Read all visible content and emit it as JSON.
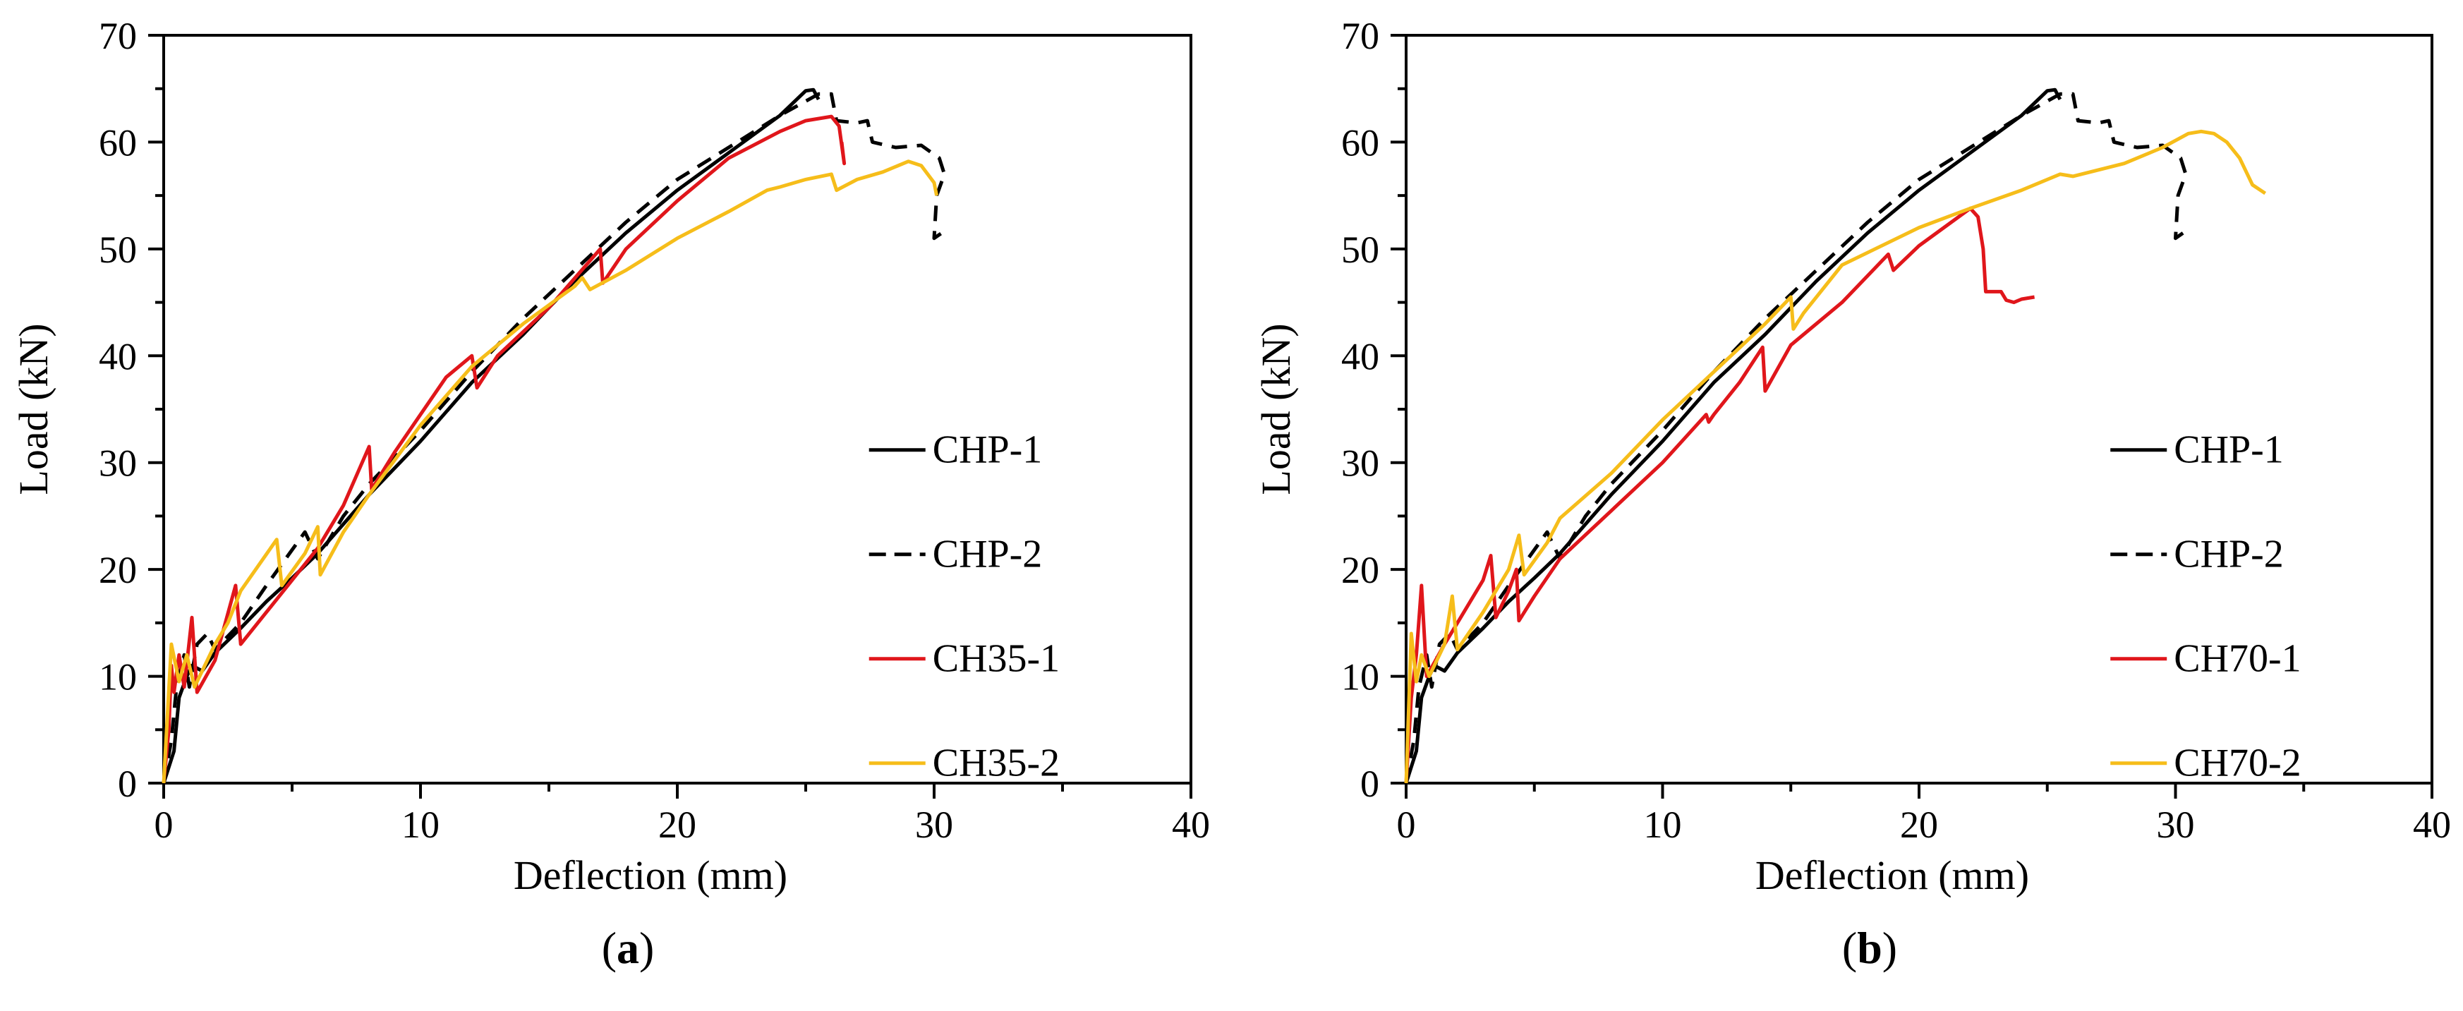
{
  "colors": {
    "axis": "#000000",
    "black": "#000000",
    "red": "#e0161b",
    "yellow": "#f6bd1a"
  },
  "chart_data": [
    {
      "panel_label": "(a)",
      "panel_letter": "a",
      "type": "line",
      "xlabel": "Deflection (mm)",
      "ylabel": "Load (kN)",
      "xlim": [
        0,
        40
      ],
      "ylim": [
        0,
        70
      ],
      "xticks": [
        0,
        10,
        20,
        30,
        40
      ],
      "yticks": [
        0,
        10,
        20,
        30,
        40,
        50,
        60,
        70
      ],
      "legend_position": "lower-right",
      "series": [
        {
          "name": "CHP-1",
          "color": "black",
          "dash": "solid",
          "points": [
            [
              0,
              0
            ],
            [
              0.4,
              3
            ],
            [
              0.6,
              8
            ],
            [
              0.9,
              10
            ],
            [
              1.1,
              11
            ],
            [
              1.5,
              10.5
            ],
            [
              2,
              12.2
            ],
            [
              3,
              14.5
            ],
            [
              4,
              17
            ],
            [
              5,
              19.2
            ],
            [
              6,
              21.5
            ],
            [
              8,
              27
            ],
            [
              10,
              32
            ],
            [
              12,
              37.5
            ],
            [
              14,
              42
            ],
            [
              16,
              47
            ],
            [
              18,
              51.5
            ],
            [
              20,
              55.5
            ],
            [
              22,
              59
            ],
            [
              24,
              62.5
            ],
            [
              25,
              64.8
            ],
            [
              25.3,
              64.9
            ],
            [
              25.5,
              64
            ]
          ]
        },
        {
          "name": "CHP-2",
          "color": "black",
          "dash": "dashed",
          "points": [
            [
              0,
              0
            ],
            [
              0.3,
              4
            ],
            [
              0.5,
              9
            ],
            [
              0.8,
              12
            ],
            [
              1,
              9
            ],
            [
              1.3,
              13
            ],
            [
              1.7,
              14
            ],
            [
              2,
              12.5
            ],
            [
              3,
              15
            ],
            [
              4,
              18.5
            ],
            [
              5.5,
              23.5
            ],
            [
              6,
              21
            ],
            [
              7,
              25
            ],
            [
              8,
              28
            ],
            [
              10,
              33
            ],
            [
              12,
              38.5
            ],
            [
              14,
              43.5
            ],
            [
              16,
              48
            ],
            [
              18,
              52.5
            ],
            [
              20,
              56.5
            ],
            [
              22,
              59.5
            ],
            [
              24,
              62.5
            ],
            [
              25.5,
              64.5
            ],
            [
              26,
              64.5
            ],
            [
              26.2,
              62
            ],
            [
              27,
              61.8
            ],
            [
              27.4,
              62
            ],
            [
              27.6,
              60
            ],
            [
              28.5,
              59.5
            ],
            [
              29.5,
              59.7
            ],
            [
              30.2,
              58.5
            ],
            [
              30.4,
              57
            ],
            [
              30.1,
              55
            ],
            [
              30,
              51
            ],
            [
              30.3,
              51.5
            ],
            [
              30.6,
              51.8
            ]
          ]
        },
        {
          "name": "CH35-1",
          "color": "red",
          "dash": "solid",
          "points": [
            [
              0,
              0
            ],
            [
              0.2,
              5
            ],
            [
              0.3,
              11
            ],
            [
              0.4,
              8.5
            ],
            [
              0.6,
              12
            ],
            [
              0.8,
              9
            ],
            [
              1.1,
              15.5
            ],
            [
              1.3,
              8.5
            ],
            [
              2,
              11.5
            ],
            [
              2.8,
              18.5
            ],
            [
              3,
              13
            ],
            [
              4,
              16
            ],
            [
              5,
              19
            ],
            [
              6,
              22
            ],
            [
              7,
              26
            ],
            [
              8,
              31.5
            ],
            [
              8.1,
              27.5
            ],
            [
              9,
              31
            ],
            [
              10,
              34.5
            ],
            [
              11,
              38
            ],
            [
              12,
              40
            ],
            [
              12.2,
              37
            ],
            [
              13,
              40
            ],
            [
              15,
              44.5
            ],
            [
              17,
              50
            ],
            [
              17.1,
              46.8
            ],
            [
              18,
              50
            ],
            [
              20,
              54.5
            ],
            [
              22,
              58.5
            ],
            [
              24,
              61
            ],
            [
              25,
              62
            ],
            [
              26,
              62.4
            ],
            [
              26.3,
              61.5
            ],
            [
              26.5,
              58
            ],
            [
              26.4,
              60
            ]
          ]
        },
        {
          "name": "CH35-2",
          "color": "yellow",
          "dash": "solid",
          "points": [
            [
              0,
              0
            ],
            [
              0.3,
              13
            ],
            [
              0.6,
              9.5
            ],
            [
              0.9,
              12
            ],
            [
              1.2,
              9
            ],
            [
              2,
              13
            ],
            [
              2.5,
              15
            ],
            [
              3,
              18
            ],
            [
              4.4,
              22.8
            ],
            [
              4.6,
              18.5
            ],
            [
              5.5,
              21.5
            ],
            [
              6,
              24
            ],
            [
              6.1,
              19.5
            ],
            [
              7,
              23.5
            ],
            [
              8,
              27
            ],
            [
              10,
              33.5
            ],
            [
              12,
              39
            ],
            [
              14,
              43
            ],
            [
              16,
              46.5
            ],
            [
              16.3,
              47.3
            ],
            [
              16.6,
              46.2
            ],
            [
              18,
              48
            ],
            [
              20,
              51
            ],
            [
              22,
              53.5
            ],
            [
              23.5,
              55.5
            ],
            [
              24,
              55.8
            ],
            [
              25,
              56.5
            ],
            [
              26,
              57
            ],
            [
              26.2,
              55.5
            ],
            [
              27,
              56.5
            ],
            [
              28,
              57.2
            ],
            [
              29,
              58.2
            ],
            [
              29.5,
              57.8
            ],
            [
              30,
              56.2
            ],
            [
              30.1,
              55
            ]
          ]
        }
      ]
    },
    {
      "panel_label": "(b)",
      "panel_letter": "b",
      "type": "line",
      "xlabel": "Deflection (mm)",
      "ylabel": "Load (kN)",
      "xlim": [
        0,
        40
      ],
      "ylim": [
        0,
        70
      ],
      "xticks": [
        0,
        10,
        20,
        30,
        40
      ],
      "yticks": [
        0,
        10,
        20,
        30,
        40,
        50,
        60,
        70
      ],
      "legend_position": "lower-right",
      "series": [
        {
          "name": "CHP-1",
          "color": "black",
          "dash": "solid",
          "points": [
            [
              0,
              0
            ],
            [
              0.4,
              3
            ],
            [
              0.6,
              8
            ],
            [
              0.9,
              10
            ],
            [
              1.1,
              11
            ],
            [
              1.5,
              10.5
            ],
            [
              2,
              12.2
            ],
            [
              3,
              14.5
            ],
            [
              4,
              17
            ],
            [
              5,
              19.2
            ],
            [
              6,
              21.5
            ],
            [
              8,
              27
            ],
            [
              10,
              32
            ],
            [
              12,
              37.5
            ],
            [
              14,
              42
            ],
            [
              16,
              47
            ],
            [
              18,
              51.5
            ],
            [
              20,
              55.5
            ],
            [
              22,
              59
            ],
            [
              24,
              62.5
            ],
            [
              25,
              64.8
            ],
            [
              25.3,
              64.9
            ],
            [
              25.5,
              64
            ]
          ]
        },
        {
          "name": "CHP-2",
          "color": "black",
          "dash": "dashed",
          "points": [
            [
              0,
              0
            ],
            [
              0.3,
              4
            ],
            [
              0.5,
              9
            ],
            [
              0.8,
              12
            ],
            [
              1,
              9
            ],
            [
              1.3,
              13
            ],
            [
              1.7,
              14
            ],
            [
              2,
              12.5
            ],
            [
              3,
              15
            ],
            [
              4,
              18.5
            ],
            [
              5.5,
              23.5
            ],
            [
              6,
              21
            ],
            [
              7,
              25
            ],
            [
              8,
              28
            ],
            [
              10,
              33
            ],
            [
              12,
              38.5
            ],
            [
              14,
              43.5
            ],
            [
              16,
              48
            ],
            [
              18,
              52.5
            ],
            [
              20,
              56.5
            ],
            [
              22,
              59.5
            ],
            [
              24,
              62.5
            ],
            [
              25.5,
              64.5
            ],
            [
              26,
              64.5
            ],
            [
              26.2,
              62
            ],
            [
              27,
              61.8
            ],
            [
              27.4,
              62
            ],
            [
              27.6,
              60
            ],
            [
              28.5,
              59.5
            ],
            [
              29.5,
              59.7
            ],
            [
              30.2,
              58.5
            ],
            [
              30.4,
              57
            ],
            [
              30.1,
              55
            ],
            [
              30,
              51
            ],
            [
              30.3,
              51.5
            ],
            [
              30.6,
              51.8
            ]
          ]
        },
        {
          "name": "CH70-1",
          "color": "red",
          "dash": "solid",
          "points": [
            [
              0,
              0
            ],
            [
              0.2,
              8
            ],
            [
              0.4,
              12
            ],
            [
              0.6,
              18.5
            ],
            [
              0.8,
              10
            ],
            [
              1.5,
              13
            ],
            [
              2,
              15
            ],
            [
              3,
              19
            ],
            [
              3.3,
              21.3
            ],
            [
              3.5,
              15.5
            ],
            [
              4,
              18
            ],
            [
              4.3,
              20
            ],
            [
              4.4,
              15.2
            ],
            [
              5,
              17.5
            ],
            [
              6,
              21
            ],
            [
              8,
              25.5
            ],
            [
              10,
              30
            ],
            [
              11.7,
              34.5
            ],
            [
              11.8,
              33.8
            ],
            [
              12,
              34.5
            ],
            [
              13,
              37.5
            ],
            [
              13.9,
              40.8
            ],
            [
              14,
              36.7
            ],
            [
              15,
              41
            ],
            [
              17,
              45
            ],
            [
              18.8,
              49.5
            ],
            [
              19,
              48
            ],
            [
              20,
              50.3
            ],
            [
              22,
              53.8
            ],
            [
              22.3,
              53
            ],
            [
              22.5,
              50
            ],
            [
              22.6,
              46
            ],
            [
              23.2,
              46
            ],
            [
              23.4,
              45.2
            ],
            [
              23.7,
              45
            ],
            [
              24,
              45.3
            ],
            [
              24.5,
              45.5
            ]
          ]
        },
        {
          "name": "CH70-2",
          "color": "yellow",
          "dash": "solid",
          "points": [
            [
              0,
              0
            ],
            [
              0.2,
              14
            ],
            [
              0.4,
              9.5
            ],
            [
              0.6,
              12
            ],
            [
              0.9,
              10
            ],
            [
              1.5,
              13
            ],
            [
              1.8,
              17.5
            ],
            [
              2,
              12.5
            ],
            [
              3,
              16
            ],
            [
              4,
              20
            ],
            [
              4.4,
              23.2
            ],
            [
              4.6,
              19.5
            ],
            [
              5.5,
              22.5
            ],
            [
              6,
              24.8
            ],
            [
              8,
              29
            ],
            [
              10,
              34
            ],
            [
              12,
              38.5
            ],
            [
              14,
              43
            ],
            [
              15,
              45.5
            ],
            [
              15.1,
              42.5
            ],
            [
              15.5,
              44
            ],
            [
              17,
              48.5
            ],
            [
              20,
              52
            ],
            [
              22,
              53.8
            ],
            [
              24,
              55.5
            ],
            [
              25.5,
              57
            ],
            [
              26,
              56.8
            ],
            [
              28,
              58
            ],
            [
              29.5,
              59.5
            ],
            [
              30.5,
              60.8
            ],
            [
              31,
              61
            ],
            [
              31.5,
              60.8
            ],
            [
              32,
              60
            ],
            [
              32.5,
              58.5
            ],
            [
              33,
              56
            ],
            [
              33.5,
              55.2
            ]
          ]
        }
      ]
    }
  ]
}
